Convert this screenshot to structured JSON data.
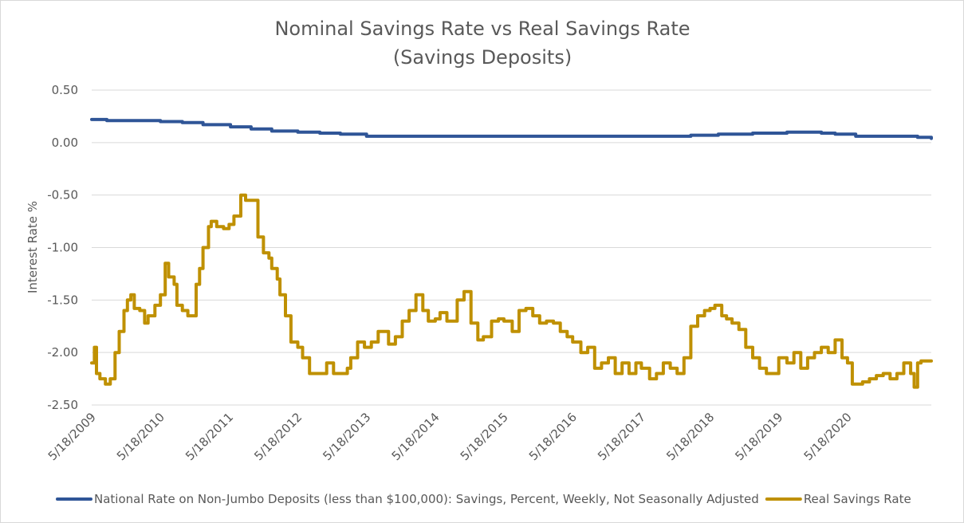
{
  "chart_data": {
    "type": "line",
    "title": "Nominal Savings Rate vs Real Savings Rate",
    "subtitle": "(Savings Deposits)",
    "xlabel": "",
    "ylabel": "Interest Rate %",
    "ylim": [
      -2.5,
      0.5
    ],
    "yticks": [
      "0.50",
      "0.00",
      "-0.50",
      "-1.00",
      "-1.50",
      "-2.00",
      "-2.50"
    ],
    "ytick_values": [
      0.5,
      0.0,
      -0.5,
      -1.0,
      -1.5,
      -2.0,
      -2.5
    ],
    "xlim": [
      2009.38,
      2021.6
    ],
    "xticks": [
      "5/18/2009",
      "5/18/2010",
      "5/18/2011",
      "5/18/2012",
      "5/18/2013",
      "5/18/2014",
      "5/18/2015",
      "5/18/2016",
      "5/18/2017",
      "5/18/2018",
      "5/18/2019",
      "5/18/2020"
    ],
    "xtick_values": [
      2009.38,
      2010.38,
      2011.38,
      2012.38,
      2013.38,
      2014.38,
      2015.38,
      2016.38,
      2017.38,
      2018.38,
      2019.38,
      2020.38
    ],
    "grid": true,
    "legend_position": "bottom",
    "series": [
      {
        "name": "National Rate on Non-Jumbo Deposits (less than $100,000): Savings, Percent, Weekly, Not Seasonally Adjusted",
        "color": "#2f5597",
        "x": [
          2009.38,
          2009.6,
          2009.9,
          2010.1,
          2010.38,
          2010.7,
          2011.0,
          2011.4,
          2011.7,
          2012.0,
          2012.38,
          2012.7,
          2013.0,
          2013.38,
          2014.0,
          2015.0,
          2016.0,
          2017.0,
          2017.8,
          2018.1,
          2018.5,
          2019.0,
          2019.5,
          2020.0,
          2020.2,
          2020.5,
          2021.0,
          2021.4,
          2021.6
        ],
        "y": [
          0.22,
          0.21,
          0.21,
          0.21,
          0.2,
          0.19,
          0.17,
          0.15,
          0.13,
          0.11,
          0.1,
          0.09,
          0.08,
          0.06,
          0.06,
          0.06,
          0.06,
          0.06,
          0.06,
          0.07,
          0.08,
          0.09,
          0.1,
          0.09,
          0.08,
          0.06,
          0.06,
          0.05,
          0.04
        ]
      },
      {
        "name": "Real Savings Rate",
        "color": "#bf9000",
        "x": [
          2009.38,
          2009.42,
          2009.45,
          2009.5,
          2009.58,
          2009.65,
          2009.72,
          2009.78,
          2009.85,
          2009.9,
          2009.95,
          2010.0,
          2010.08,
          2010.15,
          2010.2,
          2010.3,
          2010.38,
          2010.45,
          2010.5,
          2010.58,
          2010.62,
          2010.7,
          2010.78,
          2010.9,
          2010.95,
          2011.0,
          2011.08,
          2011.12,
          2011.2,
          2011.3,
          2011.38,
          2011.45,
          2011.55,
          2011.62,
          2011.72,
          2011.8,
          2011.88,
          2011.96,
          2012.0,
          2012.08,
          2012.12,
          2012.2,
          2012.28,
          2012.38,
          2012.45,
          2012.55,
          2012.6,
          2012.7,
          2012.8,
          2012.9,
          2013.0,
          2013.1,
          2013.15,
          2013.25,
          2013.35,
          2013.45,
          2013.55,
          2013.7,
          2013.8,
          2013.9,
          2014.0,
          2014.1,
          2014.2,
          2014.28,
          2014.38,
          2014.45,
          2014.55,
          2014.7,
          2014.8,
          2014.9,
          2015.0,
          2015.08,
          2015.2,
          2015.3,
          2015.38,
          2015.5,
          2015.6,
          2015.7,
          2015.8,
          2015.9,
          2016.0,
          2016.1,
          2016.2,
          2016.3,
          2016.38,
          2016.5,
          2016.6,
          2016.7,
          2016.8,
          2016.9,
          2017.0,
          2017.1,
          2017.2,
          2017.3,
          2017.38,
          2017.5,
          2017.6,
          2017.7,
          2017.8,
          2017.9,
          2018.0,
          2018.1,
          2018.2,
          2018.3,
          2018.38,
          2018.45,
          2018.55,
          2018.62,
          2018.7,
          2018.8,
          2018.9,
          2019.0,
          2019.1,
          2019.2,
          2019.3,
          2019.38,
          2019.5,
          2019.6,
          2019.7,
          2019.8,
          2019.9,
          2020.0,
          2020.1,
          2020.2,
          2020.3,
          2020.38,
          2020.45,
          2020.55,
          2020.6,
          2020.7,
          2020.8,
          2020.9,
          2021.0,
          2021.1,
          2021.2,
          2021.3,
          2021.35,
          2021.4,
          2021.45,
          2021.5,
          2021.6
        ],
        "y": [
          -2.1,
          -1.95,
          -2.2,
          -2.25,
          -2.3,
          -2.25,
          -2.0,
          -1.8,
          -1.6,
          -1.5,
          -1.45,
          -1.58,
          -1.6,
          -1.72,
          -1.65,
          -1.55,
          -1.45,
          -1.15,
          -1.28,
          -1.35,
          -1.55,
          -1.6,
          -1.65,
          -1.35,
          -1.2,
          -1.0,
          -0.8,
          -0.75,
          -0.8,
          -0.82,
          -0.78,
          -0.7,
          -0.5,
          -0.55,
          -0.55,
          -0.9,
          -1.05,
          -1.1,
          -1.2,
          -1.3,
          -1.45,
          -1.65,
          -1.9,
          -1.95,
          -2.05,
          -2.2,
          -2.2,
          -2.2,
          -2.1,
          -2.2,
          -2.2,
          -2.15,
          -2.05,
          -1.9,
          -1.95,
          -1.9,
          -1.8,
          -1.92,
          -1.85,
          -1.7,
          -1.6,
          -1.45,
          -1.6,
          -1.7,
          -1.68,
          -1.62,
          -1.7,
          -1.5,
          -1.42,
          -1.72,
          -1.88,
          -1.85,
          -1.7,
          -1.68,
          -1.7,
          -1.8,
          -1.6,
          -1.58,
          -1.65,
          -1.72,
          -1.7,
          -1.72,
          -1.8,
          -1.85,
          -1.9,
          -2.0,
          -1.95,
          -2.15,
          -2.1,
          -2.05,
          -2.2,
          -2.1,
          -2.2,
          -2.1,
          -2.15,
          -2.25,
          -2.2,
          -2.1,
          -2.15,
          -2.2,
          -2.05,
          -1.75,
          -1.65,
          -1.6,
          -1.58,
          -1.55,
          -1.65,
          -1.68,
          -1.72,
          -1.78,
          -1.95,
          -2.05,
          -2.15,
          -2.2,
          -2.2,
          -2.05,
          -2.1,
          -2.0,
          -2.15,
          -2.05,
          -2.0,
          -1.95,
          -2.0,
          -1.88,
          -2.05,
          -2.1,
          -2.3,
          -2.3,
          -2.28,
          -2.25,
          -2.22,
          -2.2,
          -2.25,
          -2.2,
          -2.1,
          -2.2,
          -2.33,
          -2.1,
          -2.08,
          -2.08,
          -2.08
        ]
      }
    ]
  }
}
